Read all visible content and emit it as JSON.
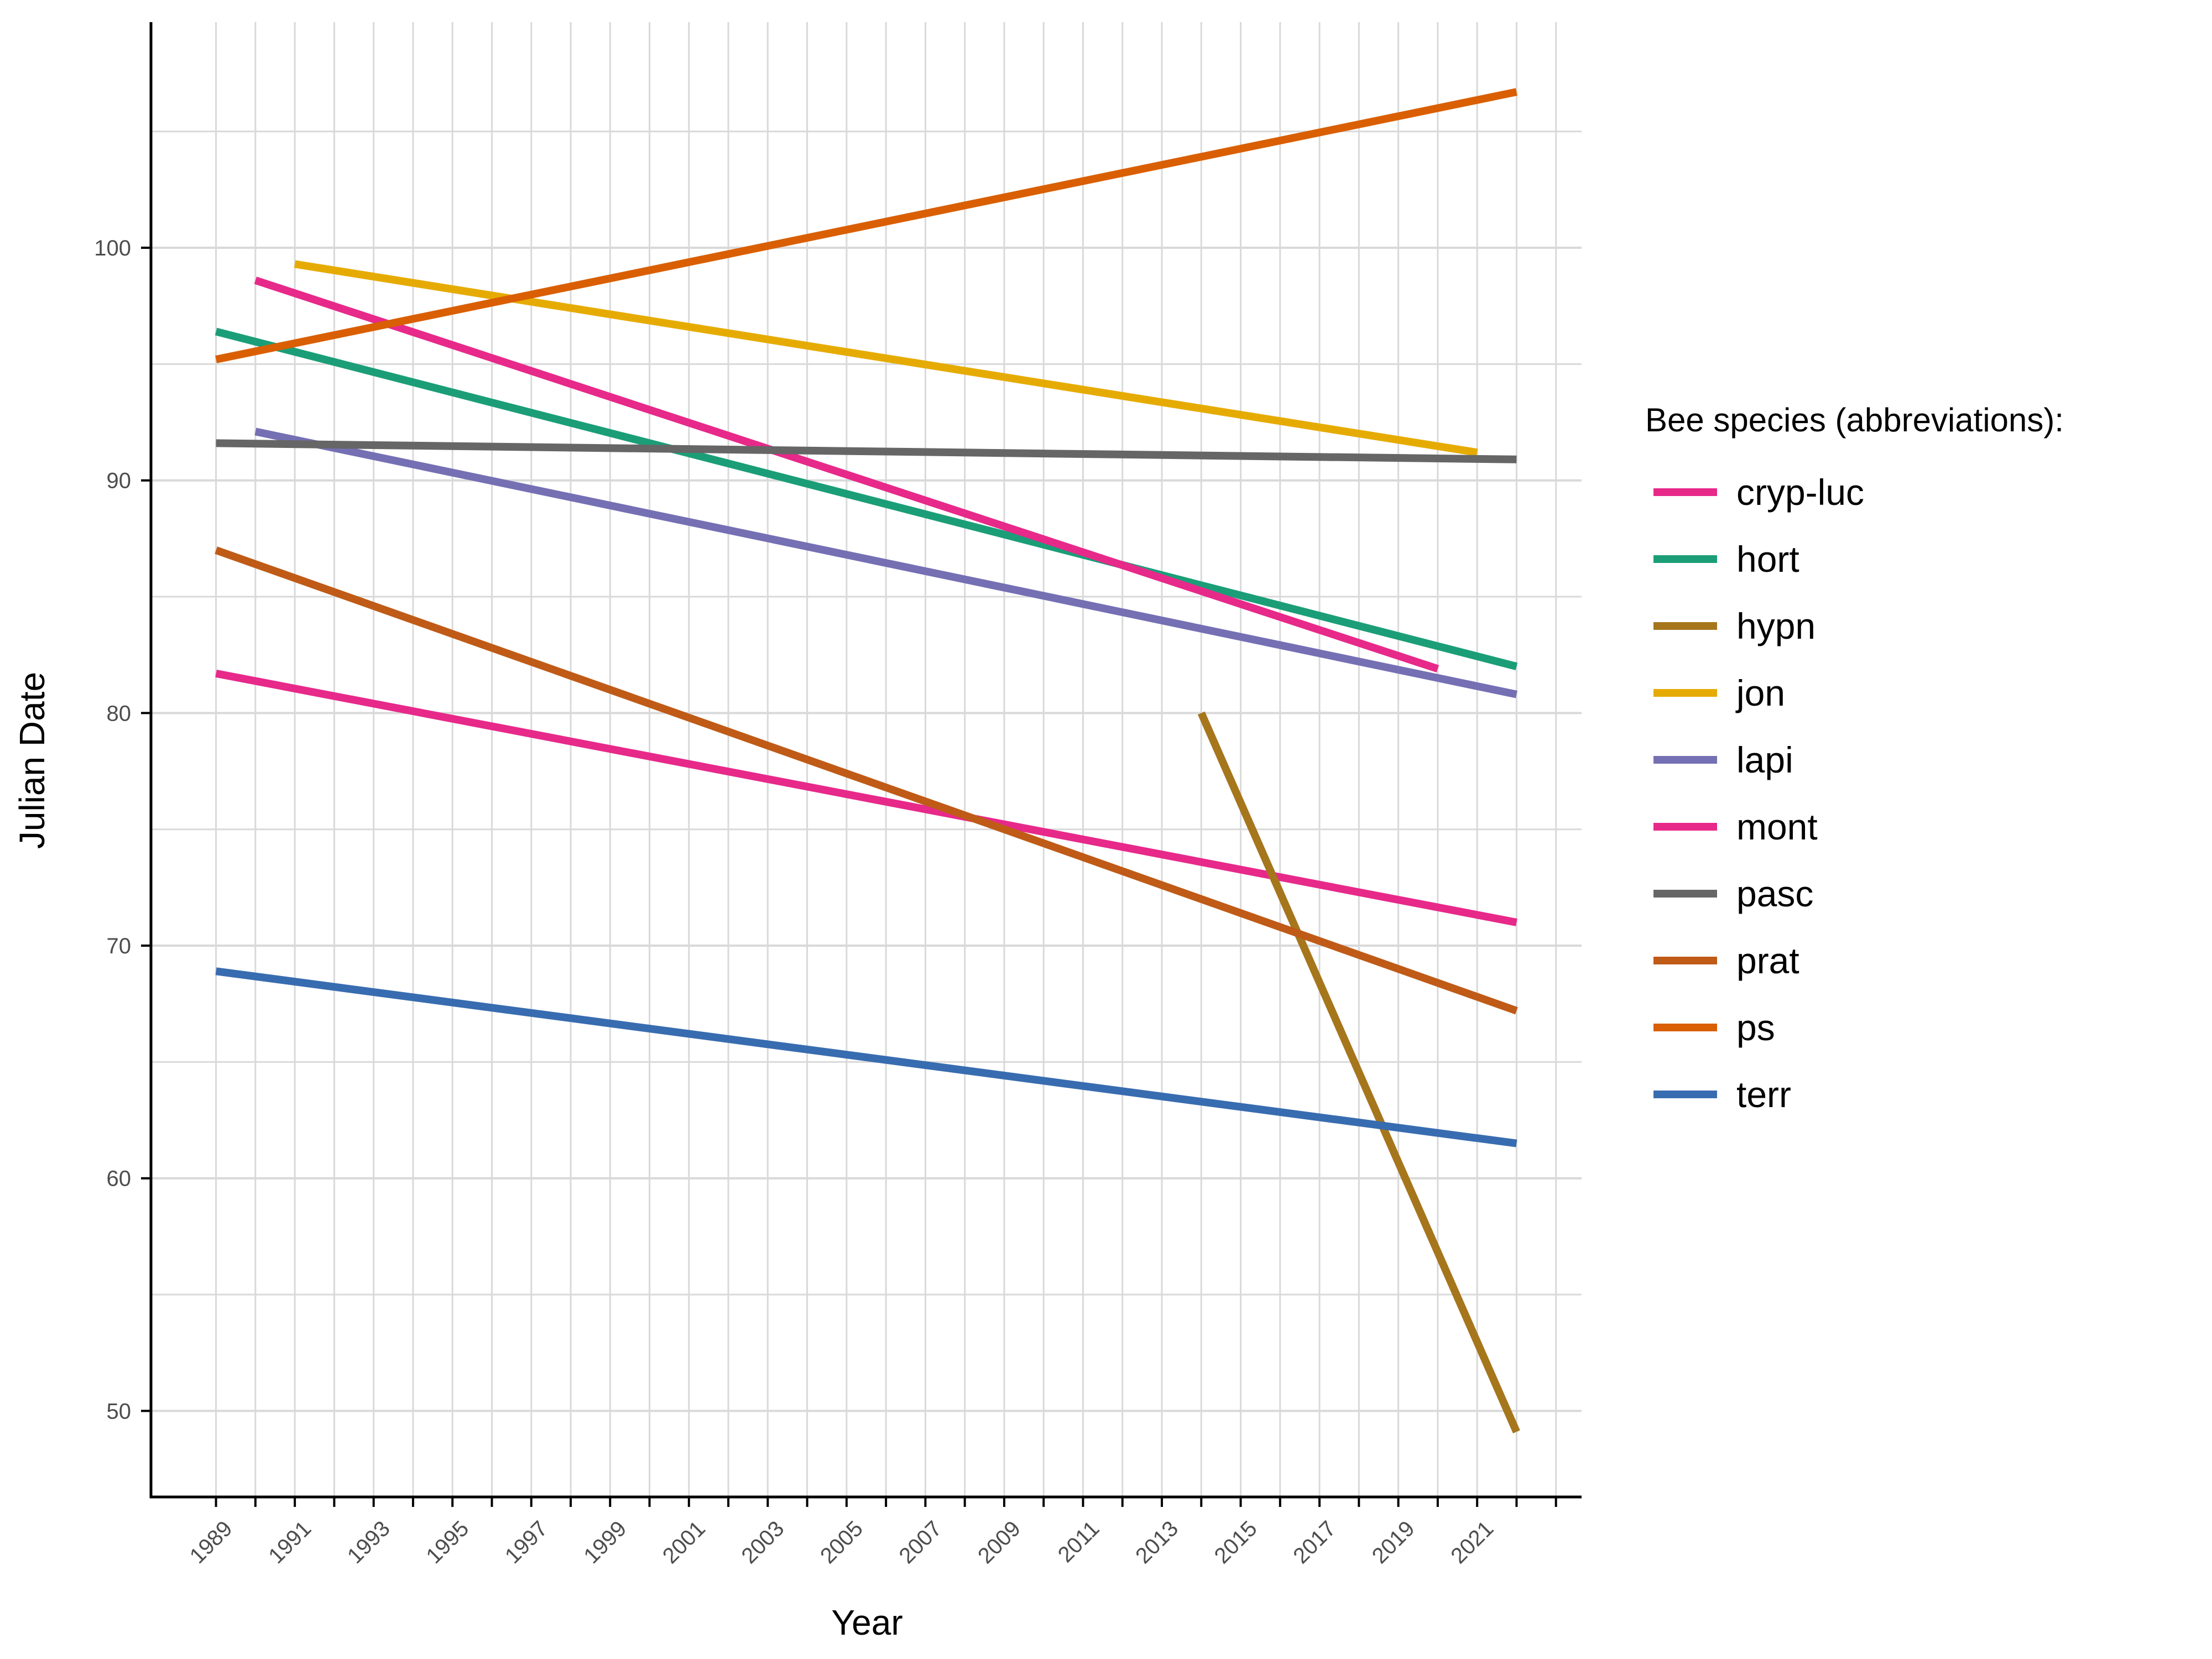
{
  "chart_data": {
    "type": "line",
    "title": "",
    "xlabel": "Year",
    "ylabel": "Julian Date",
    "xlim": [
      1987.35,
      2023.65
    ],
    "ylim": [
      46.3,
      109.7
    ],
    "x_ticks": [
      1989,
      1991,
      1993,
      1995,
      1997,
      1999,
      2001,
      2003,
      2005,
      2007,
      2009,
      2011,
      2013,
      2015,
      2017,
      2019,
      2021
    ],
    "y_ticks": [
      50,
      60,
      70,
      80,
      90,
      100
    ],
    "grid": true,
    "legend_title": "Bee species (abbreviations):",
    "legend_position": "right",
    "series": [
      {
        "name": "cryp-luc",
        "color": "#E7298A",
        "x": [
          1989,
          2022
        ],
        "y": [
          81.7,
          71.0
        ]
      },
      {
        "name": "hort",
        "color": "#1B9E77",
        "x": [
          1989,
          2022
        ],
        "y": [
          96.4,
          82.0
        ]
      },
      {
        "name": "hypn",
        "color": "#A6761D",
        "x": [
          2014,
          2022
        ],
        "y": [
          80.0,
          49.1
        ]
      },
      {
        "name": "jon",
        "color": "#E6AB02",
        "x": [
          1991,
          2021
        ],
        "y": [
          99.3,
          91.2
        ]
      },
      {
        "name": "lapi",
        "color": "#7570B3",
        "x": [
          1990,
          2022
        ],
        "y": [
          92.1,
          80.8
        ]
      },
      {
        "name": "mont",
        "color": "#E7298A",
        "x": [
          1990,
          2020
        ],
        "y": [
          98.6,
          81.9
        ]
      },
      {
        "name": "pasc",
        "color": "#666666",
        "x": [
          1989,
          2022
        ],
        "y": [
          91.6,
          90.9
        ]
      },
      {
        "name": "prat",
        "color": "#BF5B17",
        "x": [
          1989,
          2022
        ],
        "y": [
          87.0,
          67.2
        ]
      },
      {
        "name": "ps",
        "color": "#D95F02",
        "x": [
          1989,
          2022
        ],
        "y": [
          95.2,
          106.7
        ]
      },
      {
        "name": "terr",
        "color": "#386CB0",
        "x": [
          1989,
          2022
        ],
        "y": [
          68.9,
          61.5
        ]
      }
    ]
  }
}
